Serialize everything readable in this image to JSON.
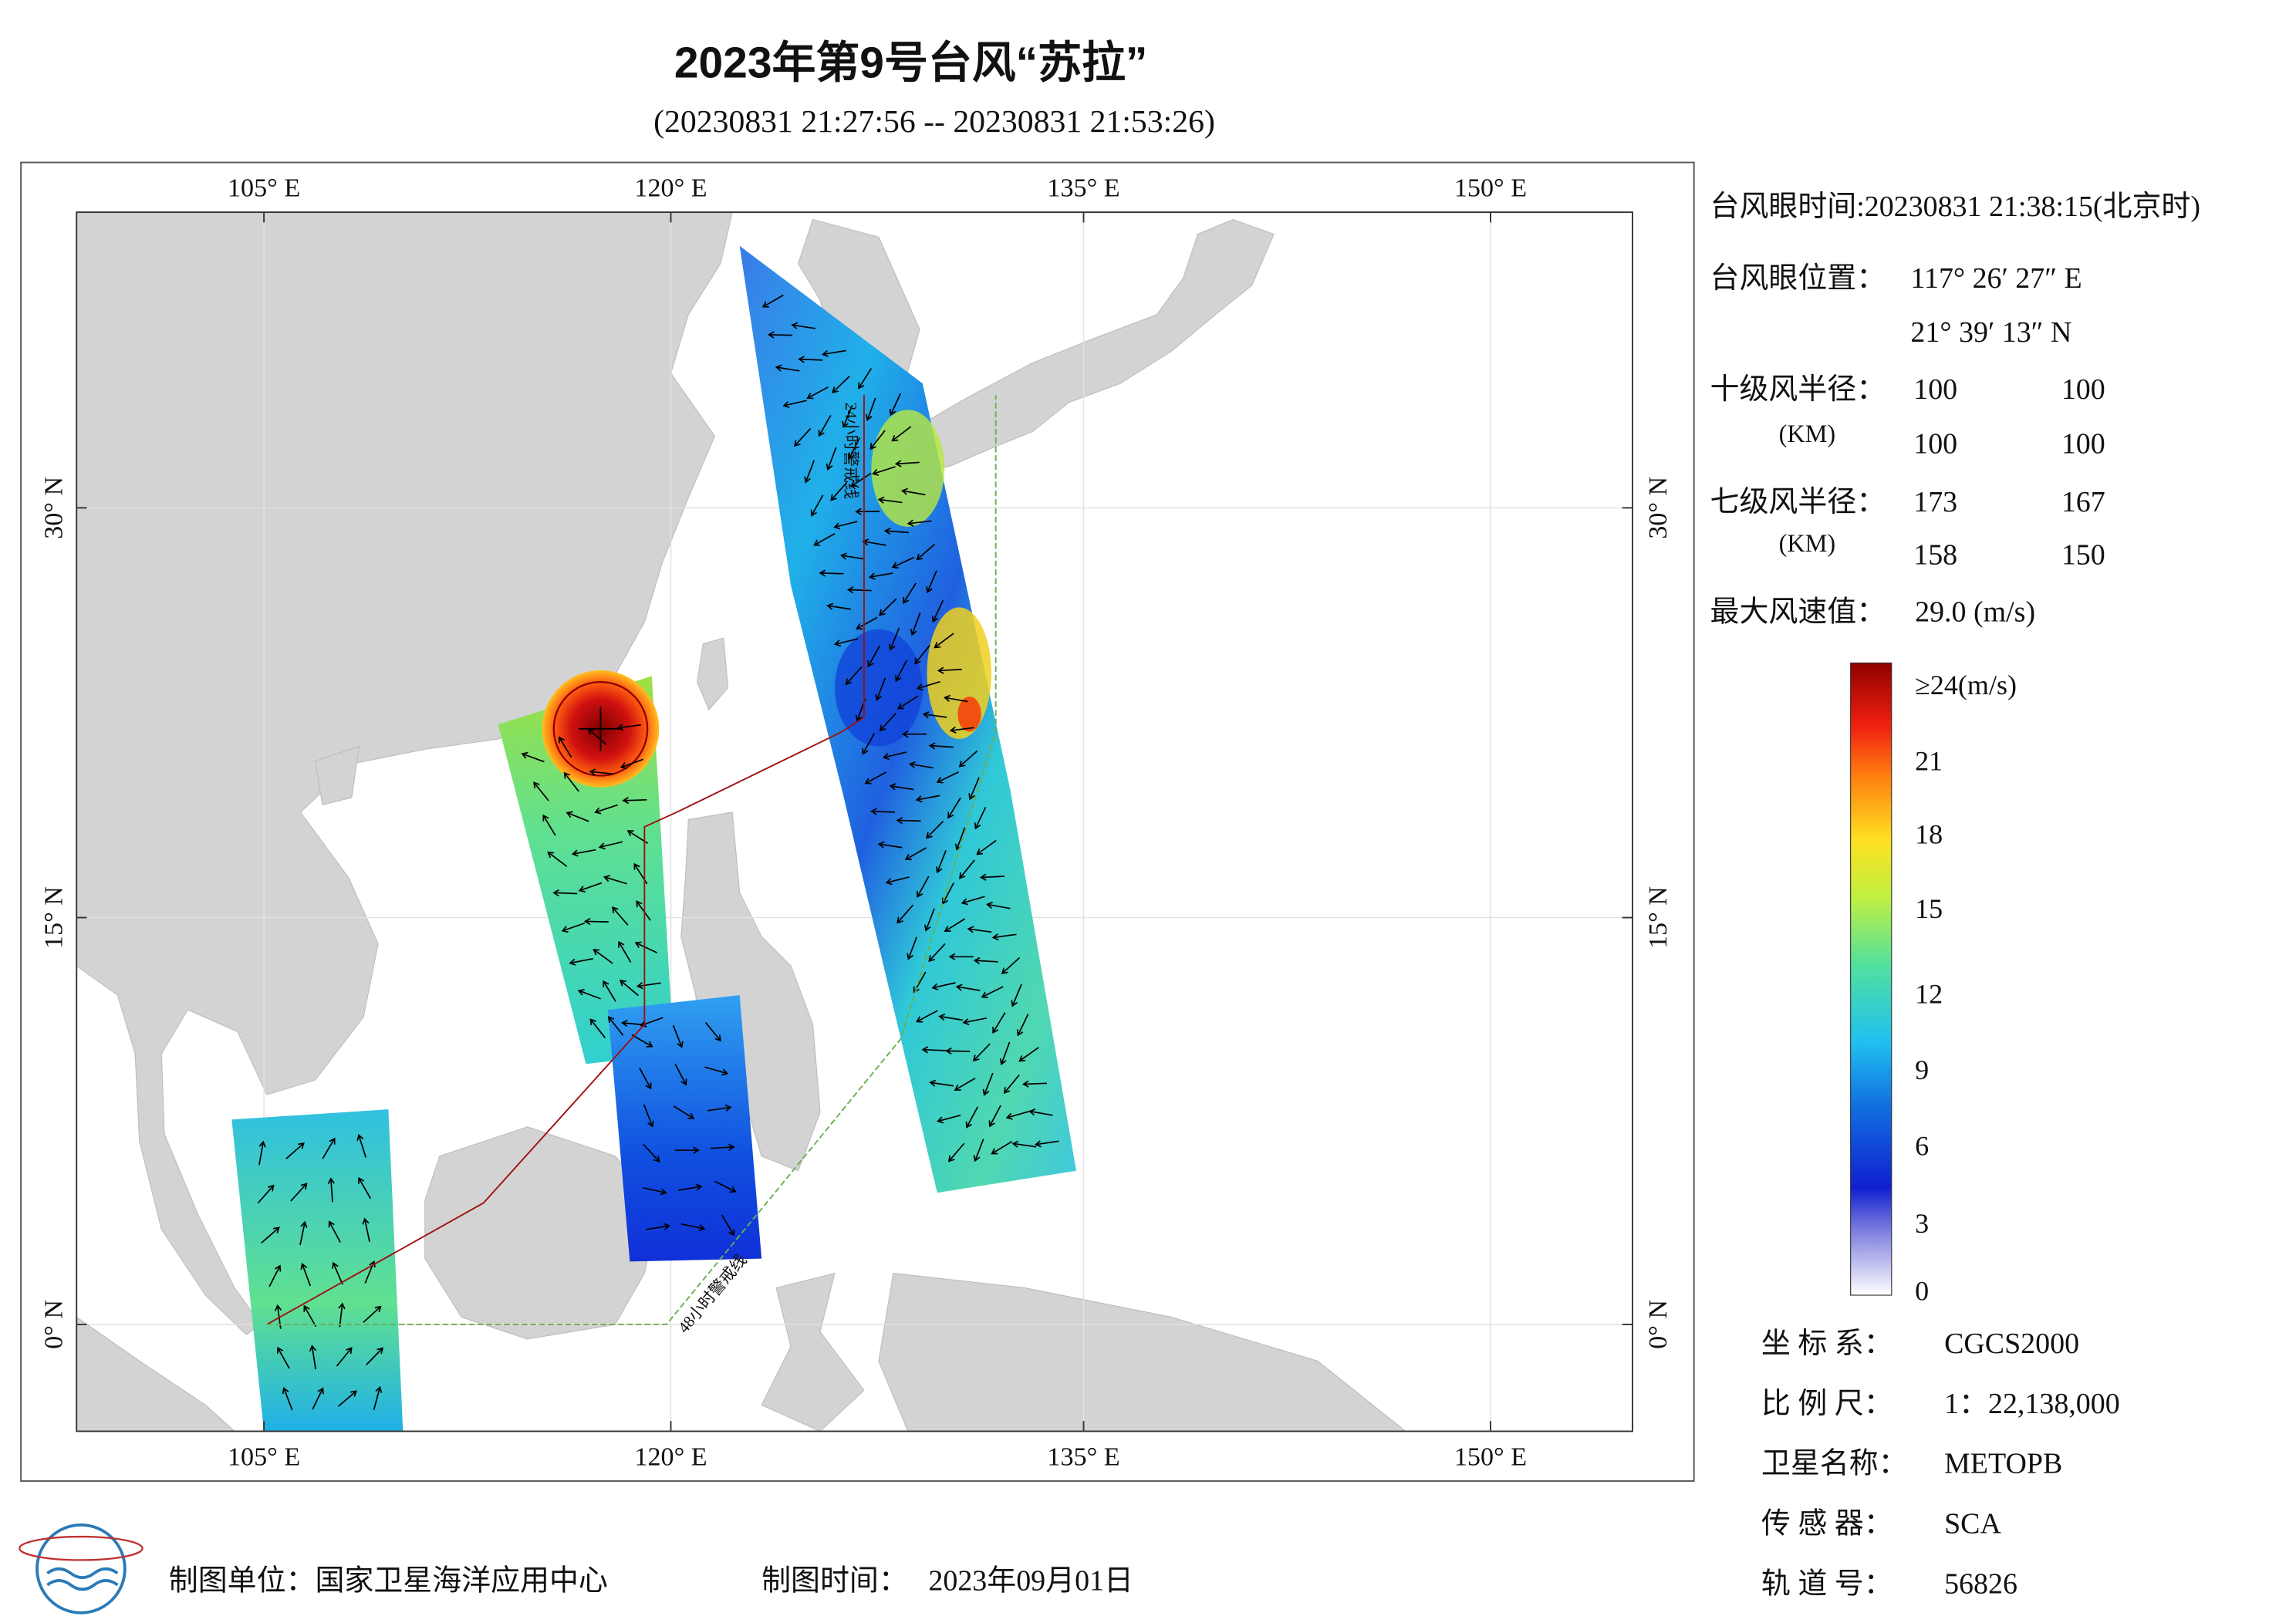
{
  "header": {
    "title": "2023年第9号台风“苏拉”",
    "subtitle": "(20230831 21:27:56 -- 20230831 21:53:26)"
  },
  "map": {
    "lon_labels": [
      "105° E",
      "120° E",
      "135° E",
      "150° E"
    ],
    "lat_labels": [
      "30° N",
      "15° N",
      "0° N"
    ],
    "annotations": [
      "24小时警戒线",
      "48小时警戒线"
    ]
  },
  "info": {
    "eye_time": "台风眼时间:20230831 21:38:15(北京时)",
    "eye_position": {
      "label": "台风眼位置：",
      "lon": "117° 26′ 27″ E",
      "lat": "21° 39′ 13″ N"
    },
    "r10": {
      "label": "十级风半径：",
      "unit": "(KM)",
      "values": [
        "100",
        "100",
        "100",
        "100"
      ]
    },
    "r7": {
      "label": "七级风半径：",
      "unit": "(KM)",
      "values": [
        "173",
        "167",
        "158",
        "150"
      ]
    },
    "max_wind": {
      "label": "最大风速值：",
      "value": "29.0  (m/s)"
    }
  },
  "colorbar": {
    "labels": [
      "≥24(m/s)",
      "21",
      "18",
      "15",
      "12",
      "9",
      "6",
      "3",
      "0"
    ]
  },
  "meta": [
    {
      "label": "坐 标 系：",
      "value": "CGCS2000"
    },
    {
      "label": "比 例 尺：",
      "value": "1：22,138,000"
    },
    {
      "label": "卫星名称：",
      "value": "METOPB"
    },
    {
      "label": "传 感 器：",
      "value": "SCA"
    },
    {
      "label": "轨 道 号：",
      "value": "56826"
    }
  ],
  "footer": {
    "unit": "制图单位：国家卫星海洋应用中心",
    "date_label": "制图时间：",
    "date": "2023年09月01日"
  }
}
